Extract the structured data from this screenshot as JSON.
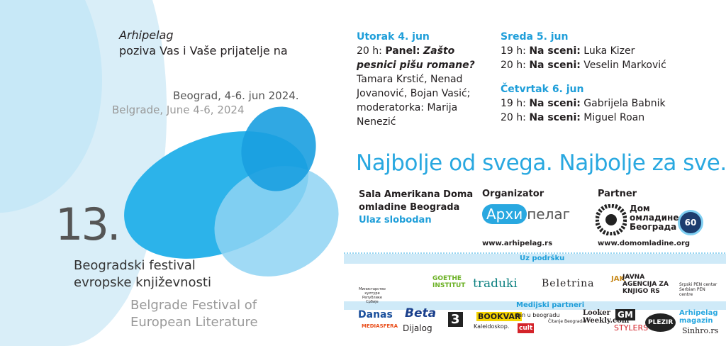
{
  "invitation": {
    "host": "Arhipelag",
    "invite": "poziva Vas i Vaše prijatelje na",
    "date_sr": "Beograd, 4-6. jun 2024.",
    "date_en": "Belgrade, June 4-6, 2024",
    "edition": "13.",
    "festival_sr": [
      "Beogradski festival",
      "evropske književnosti"
    ],
    "festival_en": [
      "Belgrade Festival of",
      "European Literature"
    ]
  },
  "schedule": [
    {
      "day": "Utorak 4. jun",
      "events": [
        {
          "time": "20 h:",
          "kind": "Panel:",
          "title": "Zašto pesnici pišu romane?",
          "participants": "Tamara Krstić, Nenad Jovanović, Bojan Vasić; moderatorka: Marija Nenezić"
        }
      ]
    },
    {
      "day": "Sreda 5. jun",
      "events": [
        {
          "time": "19 h:",
          "kind": "Na sceni:",
          "name": "Luka Kizer"
        },
        {
          "time": "20 h:",
          "kind": "Na sceni:",
          "name": "Veselin Marković"
        }
      ]
    },
    {
      "day": "Četvrtak 6. jun",
      "events": [
        {
          "time": "19 h:",
          "kind": "Na sceni:",
          "name": "Gabrijela Babnik"
        },
        {
          "time": "20 h:",
          "kind": "Na sceni:",
          "name": "Miguel Roan"
        }
      ]
    }
  ],
  "slogan": "Najbolje od svega. Najbolje za sve.",
  "venue": {
    "lines": [
      "Sala Amerikana Doma",
      "omladine Beograda"
    ],
    "entry": "Ulaz slobodan"
  },
  "organizer": {
    "label": "Organizator",
    "logo": [
      "Архи",
      "пелаг"
    ],
    "url": "www.arhipelag.rs"
  },
  "partner": {
    "label": "Partner",
    "name": [
      "Дом",
      "омладине",
      "Београда"
    ],
    "badge": "60",
    "url": "www.domomladine.org"
  },
  "sponsors": {
    "support_label": "Uz podršku",
    "support": [
      "Министарство културе Републике Србије",
      "GOETHE INSTITUT",
      "traduki",
      "Beletrina",
      "JAK",
      "JAVNA AGENCIJA ZA KNJIGO RS",
      "Srpski PEN centar Serbian PEN centre"
    ],
    "media_label": "Medijski partneri",
    "media": [
      "Danas",
      "MEDIASFERA",
      "Beta",
      "Dijalog",
      "3",
      "BOOKVAR",
      "Kaleidoskop.",
      "dan u beogradu",
      "cult",
      "Čitanje Beograda",
      "Looker Weekly.com",
      "GM",
      "STYLERS",
      "PLEZIR",
      "Arhipelag magazin",
      "Sinhro.rs"
    ]
  }
}
